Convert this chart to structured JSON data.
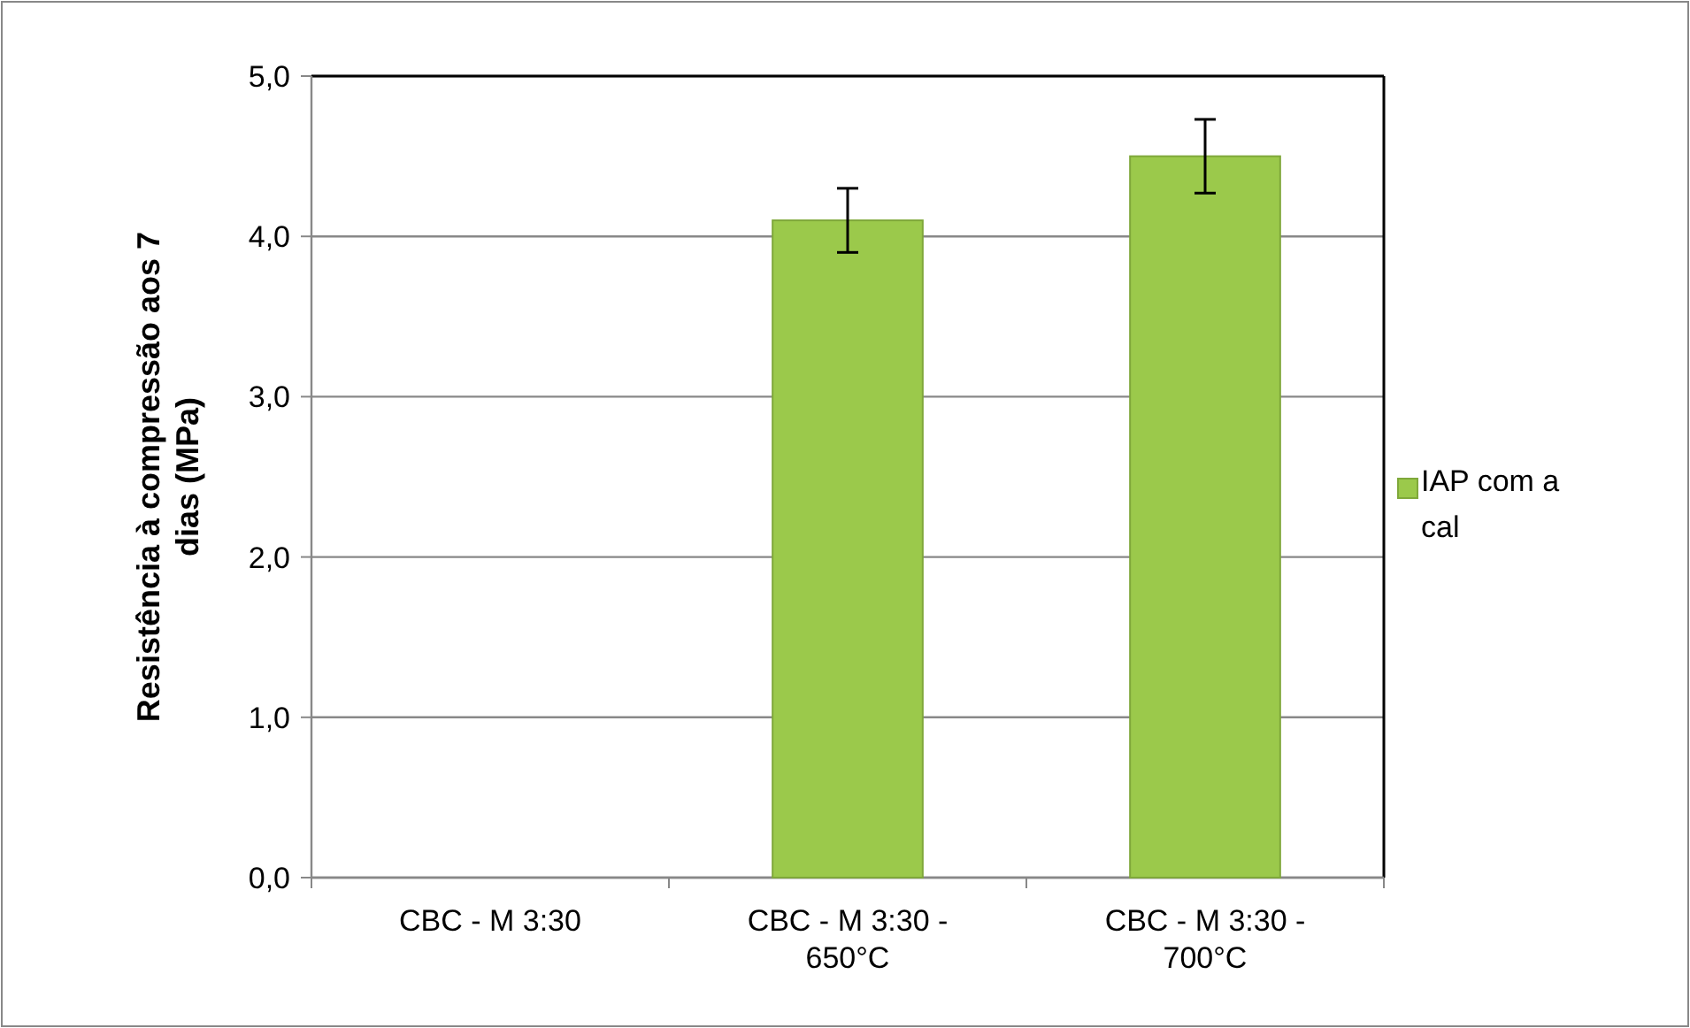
{
  "chart_data": {
    "type": "bar",
    "ylabel": "Resistência à compressão aos 7 dias (MPa)",
    "categories": [
      "CBC - M 3:30",
      "CBC - M 3:30 - 650°C",
      "CBC - M 3:30 - 700°C"
    ],
    "series": [
      {
        "name": "IAP com a cal",
        "color": "#9bc94b",
        "values": [
          0,
          4.1,
          4.5
        ],
        "errors": [
          null,
          0.2,
          0.23
        ]
      }
    ],
    "ylim": [
      0,
      5
    ],
    "yticks": [
      {
        "value": 0,
        "label": "0,0"
      },
      {
        "value": 1,
        "label": "1,0"
      },
      {
        "value": 2,
        "label": "2,0"
      },
      {
        "value": 3,
        "label": "3,0"
      },
      {
        "value": 4,
        "label": "4,0"
      },
      {
        "value": 5,
        "label": "5,0"
      }
    ],
    "grid": "y",
    "legend": "right"
  }
}
